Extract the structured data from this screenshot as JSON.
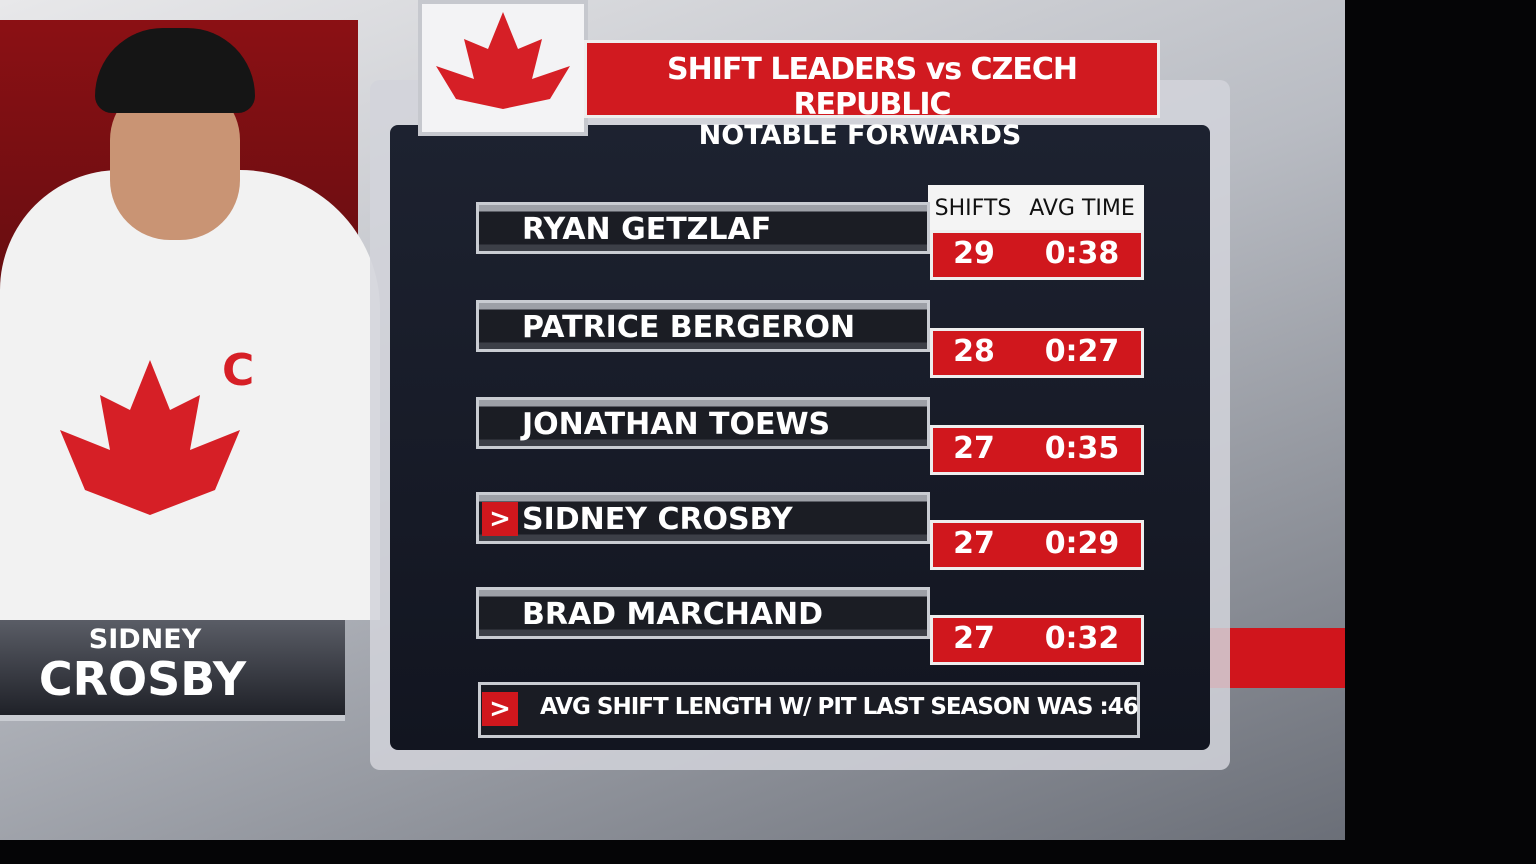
{
  "graphic": {
    "title": "SHIFT LEADERS vs CZECH REPUBLIC",
    "subtitle": "NOTABLE FORWARDS",
    "columns": [
      "SHIFTS",
      "AVG TIME"
    ],
    "rows": [
      {
        "name": "RYAN GETZLAF",
        "shifts": 29,
        "avg_time": "0:38"
      },
      {
        "name": "PATRICE BERGERON",
        "shifts": 28,
        "avg_time": "0:27"
      },
      {
        "name": "JONATHAN TOEWS",
        "shifts": 27,
        "avg_time": "0:35"
      },
      {
        "name": "SIDNEY CROSBY",
        "shifts": 27,
        "avg_time": "0:29",
        "highlight": true
      },
      {
        "name": "BRAD MARCHAND",
        "shifts": 27,
        "avg_time": "0:32"
      }
    ],
    "footer": "AVG SHIFT LENGTH W/ PIT LAST SEASON WAS :46",
    "player": {
      "first_name": "SIDNEY",
      "last_name": "CROSBY"
    }
  }
}
